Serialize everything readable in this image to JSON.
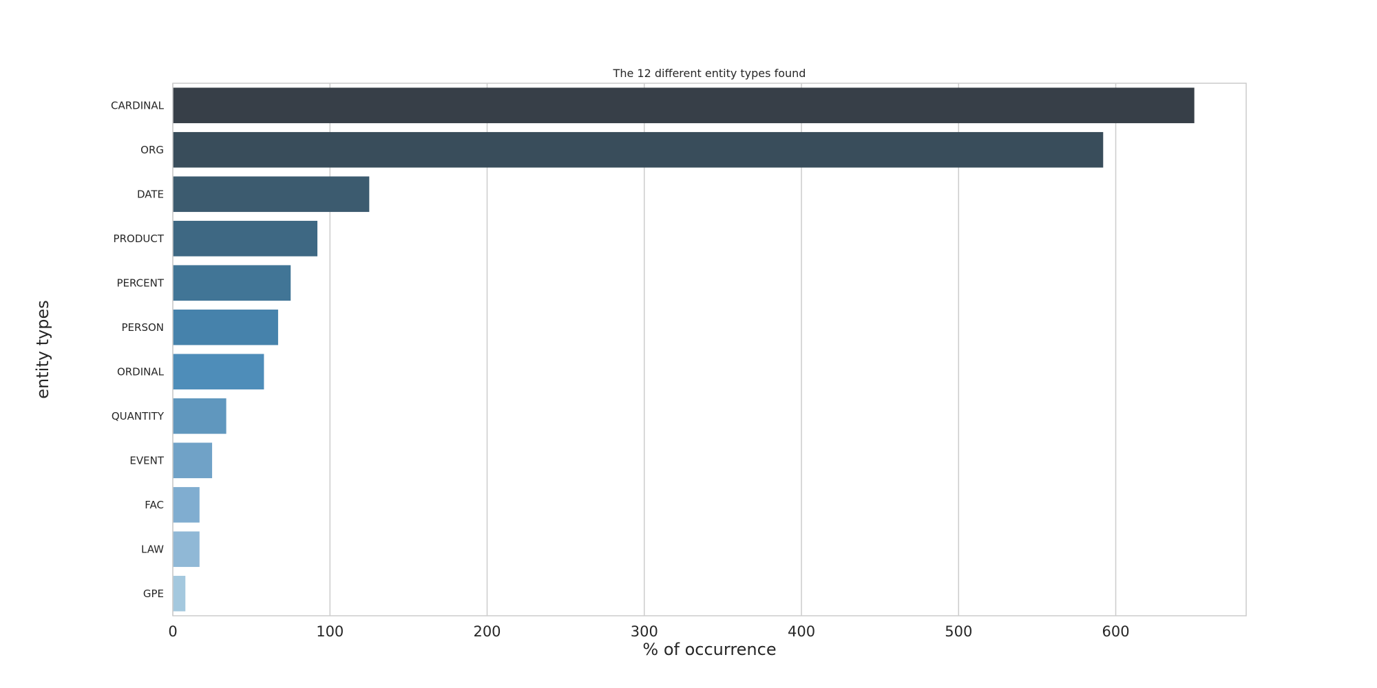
{
  "chart_data": {
    "type": "bar",
    "orientation": "horizontal",
    "title": "The 12 different entity types found",
    "xlabel": "% of occurrence",
    "ylabel": "entity types",
    "categories": [
      "CARDINAL",
      "ORG",
      "DATE",
      "PRODUCT",
      "PERCENT",
      "PERSON",
      "ORDINAL",
      "QUANTITY",
      "EVENT",
      "FAC",
      "LAW",
      "GPE"
    ],
    "values": [
      650,
      592,
      125,
      92,
      75,
      67,
      58,
      34,
      25,
      17,
      17,
      8
    ],
    "xlim": [
      0,
      683
    ],
    "xticks": [
      0,
      100,
      200,
      300,
      400,
      500,
      600
    ],
    "grid": "vertical",
    "legend": "none",
    "colors": [
      "#373f48",
      "#394d5b",
      "#3c5b6f",
      "#3e6883",
      "#417596",
      "#4682ab",
      "#4e8db9",
      "#6097be",
      "#70a2c7",
      "#80add0",
      "#90b8d6",
      "#a4c8de"
    ],
    "grid_color": "#cccccc",
    "frame_color": "#cccccc"
  }
}
